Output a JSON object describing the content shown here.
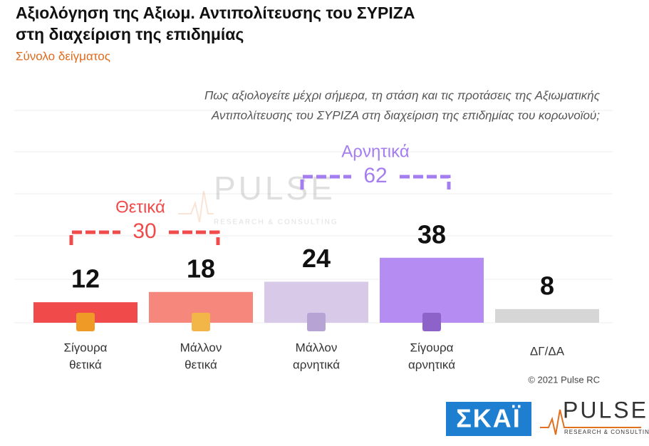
{
  "chart_data": {
    "type": "bar",
    "title": [
      "Αξιολόγηση της Αξιωμ. Αντιπολίτευσης του ΣΥΡΙΖΑ",
      "στη διαχείριση της επιδημίας"
    ],
    "subtitle": "Σύνολο δείγματος",
    "question": [
      "Πως αξιολογείτε  μέχρι σήμερα, τη στάση και τις προτάσεις της Αξιωματικής",
      "Αντιπολίτευσης του ΣΥΡΙΖΑ στη διαχείριση της επιδημίας του κορωνοϊού;"
    ],
    "categories": [
      [
        "Σίγουρα",
        "θετικά"
      ],
      [
        "Μάλλον",
        "θετικά"
      ],
      [
        "Μάλλον",
        "αρνητικά"
      ],
      [
        "Σίγουρα",
        "αρνητικά"
      ],
      [
        "ΔΓ/ΔΑ"
      ]
    ],
    "values": [
      12,
      18,
      24,
      38,
      8
    ],
    "colors": [
      "#f04a4a",
      "#f5877d",
      "#d8c9e8",
      "#b58cf2",
      "#d6d6d6"
    ],
    "icon_colors": [
      "#ef9a26",
      "#f2b648",
      "#b7a3d4",
      "#8d63c9",
      null
    ],
    "ylim": [
      0,
      125
    ],
    "groups": [
      {
        "label": "Θετικά",
        "value": 30,
        "color": "#f04a4a"
      },
      {
        "label": "Αρνητικά",
        "value": 62,
        "color": "#a47ef0"
      }
    ],
    "copyright": "© 2021 Pulse RC",
    "logos": {
      "broadcaster": "ΣΚΑΪ",
      "pollster": "PULSE",
      "pollster_tagline": "RESEARCH & CONSULTING"
    }
  }
}
